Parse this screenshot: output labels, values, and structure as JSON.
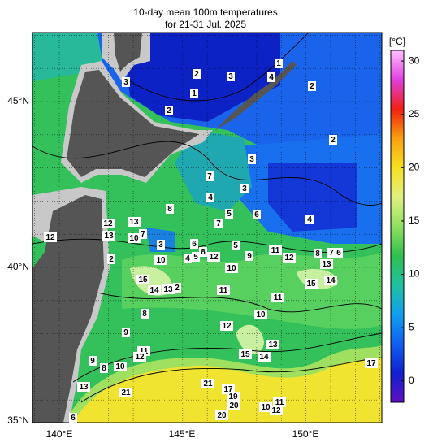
{
  "title": [
    "10-day mean 100m temperatures",
    "for 21-31 Jul. 2025"
  ],
  "axes": {
    "lat_labels": [
      "45°N",
      "40°N",
      "35°N"
    ],
    "lon_labels": [
      "140°E",
      "145°E",
      "150°E"
    ]
  },
  "colorbar": {
    "unit": "[°C]",
    "range": [
      -2,
      31
    ],
    "ticks": [
      0,
      5,
      10,
      15,
      20,
      25,
      30
    ],
    "colors": [
      "#6010c0",
      "#1020d0",
      "#1060f0",
      "#10a0f0",
      "#20c0a0",
      "#30c050",
      "#90e060",
      "#e0f080",
      "#f8e020",
      "#f8a010",
      "#f02010",
      "#e040e0",
      "#ffc0ff"
    ]
  },
  "contour_labels": [
    1,
    4,
    2,
    3,
    2,
    3,
    1,
    2,
    2,
    3,
    7,
    3,
    4,
    8,
    5,
    6,
    4,
    7,
    13,
    12,
    13,
    10,
    7,
    12,
    3,
    6,
    5,
    8,
    4,
    5,
    12,
    11,
    9,
    12,
    8,
    7,
    6,
    13,
    10,
    10,
    2,
    15,
    14,
    13,
    2,
    11,
    15,
    14,
    11,
    8,
    10,
    12,
    9,
    13,
    15,
    14,
    11,
    12,
    9,
    8,
    10,
    17,
    13,
    21,
    21,
    17,
    19,
    20,
    10,
    11,
    12,
    20,
    6
  ]
}
